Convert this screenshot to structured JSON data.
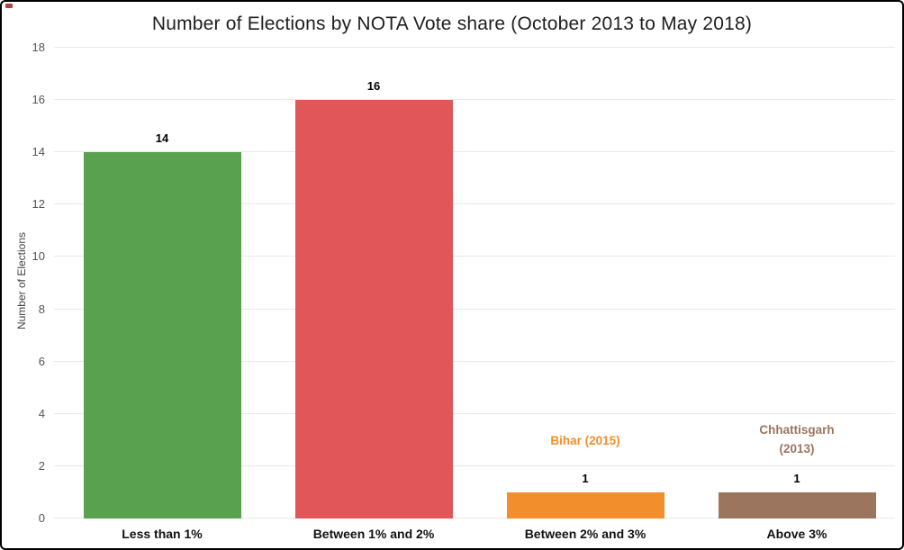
{
  "frame": {
    "border_color": "#000000",
    "background_color": "#ffffff",
    "corner_mark_color": "#b5413a"
  },
  "chart_data": {
    "type": "bar",
    "title": "Number of Elections by NOTA Vote share (October 2013 to May 2018)",
    "xlabel": "",
    "ylabel": "Number of Elections",
    "ylim": [
      0,
      18
    ],
    "yticks": [
      0,
      2,
      4,
      6,
      8,
      10,
      12,
      14,
      16,
      18
    ],
    "grid": "horizontal-light",
    "legend_position": "none",
    "categories": [
      "Less than 1%",
      "Between 1% and 2%",
      "Between 2% and 3%",
      "Above 3%"
    ],
    "values": [
      14,
      16,
      1,
      1
    ],
    "value_labels": [
      "14",
      "16",
      "1",
      "1"
    ],
    "bar_colors": [
      "#59a14f",
      "#e15759",
      "#f28e2b",
      "#9c755f"
    ],
    "annotations": [
      {
        "bar_index": 2,
        "lines": [
          "Bihar (2015)"
        ],
        "color": "#f28e2b"
      },
      {
        "bar_index": 3,
        "lines": [
          "Chhattisgarh",
          "(2013)"
        ],
        "color": "#9c755f"
      }
    ],
    "colors": {
      "grid": "#e9e9e9",
      "tick_label": "#555555",
      "axis_title": "#444444",
      "title": "#1e1e1e",
      "category_label": "#111111",
      "value_label": "#000000"
    }
  }
}
